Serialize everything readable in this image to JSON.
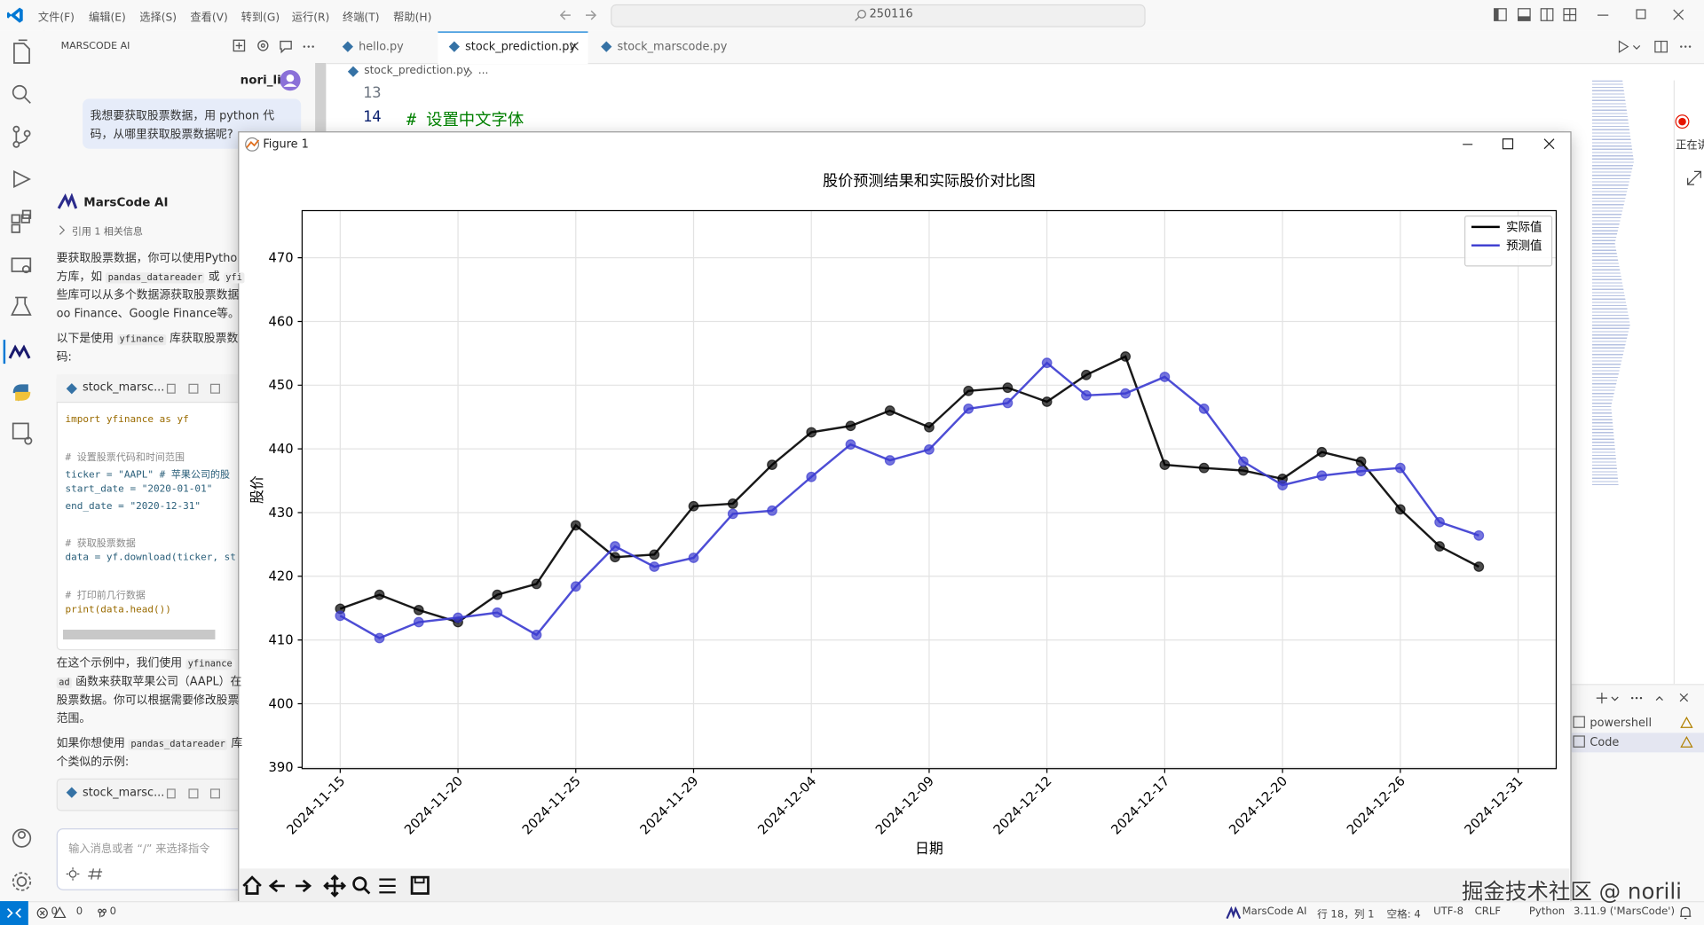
{
  "menu": [
    "文件(F)",
    "编辑(E)",
    "选择(S)",
    "查看(V)",
    "转到(G)",
    "运行(R)",
    "终端(T)",
    "帮助(H)"
  ],
  "search": "250116",
  "chat": {
    "panel_title": "MARSCODE AI",
    "user": "nori_li",
    "question": [
      "我想要获取股票数据，用 python 代",
      "码，从哪里获取股票数据呢?"
    ],
    "assistant": "MarsCode AI",
    "reference": "引用 1 相关信息",
    "answer_1": [
      [
        "要获取股票数据，你可以使用Pytho"
      ],
      [
        "方库，如 ",
        {
          "code": "pandas_datareader"
        },
        " 或 ",
        {
          "code": "yfi"
        }
      ],
      [
        "些库可以从多个数据源获取股票数据"
      ],
      [
        "oo Finance、Google Finance等。"
      ]
    ],
    "answer_2": [
      [
        "以下是使用 ",
        {
          "code": "yfinance"
        },
        " 库获取股票数"
      ],
      [
        "码:"
      ]
    ],
    "code_1": {
      "file": "stock_marsc...",
      "blocks": [
        [
          "import yfinance as yf"
        ],
        [
          "# 设置股票代码和时间范围",
          "ticker = \"AAPL\"  # 苹果公司的股",
          "start_date = \"2020-01-01\"",
          "end_date = \"2020-12-31\""
        ],
        [
          "# 获取股票数据",
          "data = yf.download(ticker, st"
        ],
        [
          "# 打印前几行数据",
          "print(data.head())"
        ]
      ]
    },
    "answer_3": [
      [
        "在这个示例中，我们使用 ",
        {
          "code": "yfinance"
        }
      ],
      [
        {
          "code": "ad"
        },
        " 函数来获取苹果公司（AAPL）在"
      ],
      [
        "股票数据。你可以根据需要修改股票"
      ],
      [
        "范围。"
      ]
    ],
    "answer_4": [
      [
        "如果你想使用 ",
        {
          "code": "pandas_datareader"
        },
        " 库"
      ],
      [
        "个类似的示例:"
      ]
    ],
    "code_2": {
      "file": "stock_marsc..."
    },
    "input_placeholder": "输入消息或者 “/” 来选择指令"
  },
  "tabs": [
    "hello.py",
    "stock_prediction.py",
    "stock_marscode.py"
  ],
  "breadcrumb": [
    "stock_prediction.py",
    "..."
  ],
  "editor_lines": [
    {
      "num": "13"
    },
    {
      "num": "14",
      "text": "# 设置中文字体"
    }
  ],
  "side_label": "正在讲",
  "terminal": [
    "powershell",
    "Code"
  ],
  "figure": {
    "window_title": "Figure 1",
    "chart_data": {
      "type": "line",
      "title": "股价预测结果和实际股价对比图",
      "xlabel": "日期",
      "ylabel": "股价",
      "categories": [
        "2024-11-15",
        null,
        null,
        "2024-11-20",
        null,
        null,
        "2024-11-25",
        null,
        null,
        "2024-11-29",
        null,
        null,
        "2024-12-04",
        null,
        null,
        "2024-12-09",
        null,
        null,
        "2024-12-12",
        null,
        null,
        "2024-12-17",
        null,
        null,
        "2024-12-20",
        null,
        null,
        "2024-12-26",
        null,
        null,
        "2024-12-31"
      ],
      "series": [
        {
          "name": "实际值",
          "color": "#000000",
          "values": [
            414.9,
            417.1,
            414.7,
            412.8,
            417.1,
            418.8,
            428.0,
            423.0,
            423.4,
            431.0,
            431.4,
            437.5,
            442.6,
            443.6,
            446.0,
            443.4,
            449.1,
            449.6,
            447.4,
            451.6,
            454.5,
            437.5,
            437.0,
            436.6,
            435.3,
            439.5,
            438.0,
            430.5,
            424.7,
            421.5,
            null
          ]
        },
        {
          "name": "预测值",
          "color": "#3a3ad0",
          "values": [
            413.8,
            410.3,
            412.8,
            413.5,
            414.3,
            410.8,
            418.4,
            424.7,
            421.5,
            422.9,
            429.8,
            430.3,
            435.6,
            440.7,
            438.2,
            439.9,
            446.3,
            447.2,
            453.5,
            448.4,
            448.7,
            451.3,
            446.3,
            438.0,
            434.3,
            435.8,
            436.5,
            437.0,
            428.5,
            426.4,
            null
          ]
        }
      ],
      "ylim": [
        389.8,
        477.4
      ],
      "yticks": [
        390,
        400,
        410,
        420,
        430,
        440,
        450,
        460,
        470
      ],
      "grid": true,
      "markers": true,
      "legend": "upper right"
    }
  },
  "status": {
    "problems": [
      "0",
      "0",
      "0"
    ],
    "right": [
      "MarsCode AI",
      "行 18，列 1",
      "空格: 4",
      "UTF-8",
      "CRLF",
      "Python",
      "3.11.9 ('MarsCode')"
    ]
  },
  "watermark": "掘金技术社区 @ norili"
}
